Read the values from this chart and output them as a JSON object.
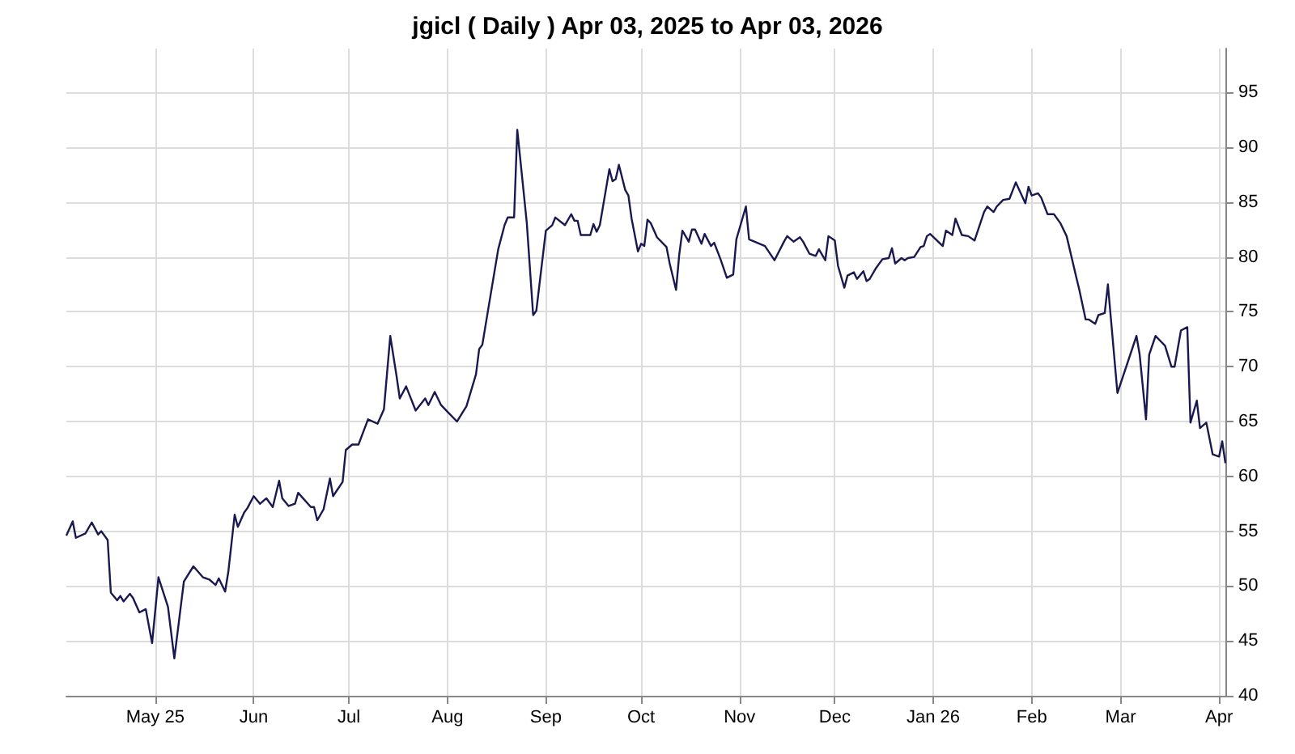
{
  "chart_data": {
    "type": "line",
    "title": "jgicl ( Daily ) Apr 03, 2025 to Apr 03, 2026",
    "xlim": [
      "2025-04-03",
      "2026-04-03"
    ],
    "xticks": [
      {
        "value": "2025-05-01",
        "label": "May 25"
      },
      {
        "value": "2025-06-01",
        "label": "Jun"
      },
      {
        "value": "2025-07-01",
        "label": "Jul"
      },
      {
        "value": "2025-08-01",
        "label": "Aug"
      },
      {
        "value": "2025-09-01",
        "label": "Sep"
      },
      {
        "value": "2025-10-01",
        "label": "Oct"
      },
      {
        "value": "2025-11-01",
        "label": "Nov"
      },
      {
        "value": "2025-12-01",
        "label": "Dec"
      },
      {
        "value": "2026-01-01",
        "label": "Jan 26"
      },
      {
        "value": "2026-02-01",
        "label": "Feb"
      },
      {
        "value": "2026-03-01",
        "label": "Mar"
      },
      {
        "value": "2026-04-01",
        "label": "Apr"
      }
    ],
    "ylim": [
      40,
      99
    ],
    "yticks": [
      40,
      45,
      50,
      55,
      60,
      65,
      70,
      75,
      80,
      85,
      90,
      95
    ],
    "grid": true,
    "marker": "none",
    "line_style": "solid",
    "x": [
      "2025-04-03",
      "2025-04-05",
      "2025-04-06",
      "2025-04-09",
      "2025-04-11",
      "2025-04-13",
      "2025-04-14",
      "2025-04-16",
      "2025-04-17",
      "2025-04-19",
      "2025-04-20",
      "2025-04-21",
      "2025-04-23",
      "2025-04-24",
      "2025-04-26",
      "2025-04-28",
      "2025-04-30",
      "2025-05-02",
      "2025-05-05",
      "2025-05-07",
      "2025-05-10",
      "2025-05-13",
      "2025-05-16",
      "2025-05-18",
      "2025-05-20",
      "2025-05-21",
      "2025-05-23",
      "2025-05-24",
      "2025-05-26",
      "2025-05-27",
      "2025-05-29",
      "2025-05-30",
      "2025-06-01",
      "2025-06-03",
      "2025-06-05",
      "2025-06-07",
      "2025-06-09",
      "2025-06-10",
      "2025-06-12",
      "2025-06-14",
      "2025-06-15",
      "2025-06-19",
      "2025-06-20",
      "2025-06-21",
      "2025-06-23",
      "2025-06-25",
      "2025-06-26",
      "2025-06-29",
      "2025-06-30",
      "2025-07-02",
      "2025-07-04",
      "2025-07-07",
      "2025-07-10",
      "2025-07-12",
      "2025-07-14",
      "2025-07-16",
      "2025-07-17",
      "2025-07-19",
      "2025-07-22",
      "2025-07-25",
      "2025-07-26",
      "2025-07-28",
      "2025-07-30",
      "2025-08-01",
      "2025-08-04",
      "2025-08-07",
      "2025-08-10",
      "2025-08-11",
      "2025-08-12",
      "2025-08-14",
      "2025-08-17",
      "2025-08-19",
      "2025-08-20",
      "2025-08-22",
      "2025-08-23",
      "2025-08-26",
      "2025-08-28",
      "2025-08-29",
      "2025-09-01",
      "2025-09-03",
      "2025-09-04",
      "2025-09-07",
      "2025-09-09",
      "2025-09-10",
      "2025-09-11",
      "2025-09-12",
      "2025-09-15",
      "2025-09-16",
      "2025-09-17",
      "2025-09-18",
      "2025-09-21",
      "2025-09-22",
      "2025-09-23",
      "2025-09-24",
      "2025-09-26",
      "2025-09-27",
      "2025-09-28",
      "2025-09-30",
      "2025-10-01",
      "2025-10-02",
      "2025-10-03",
      "2025-10-04",
      "2025-10-06",
      "2025-10-09",
      "2025-10-10",
      "2025-10-12",
      "2025-10-13",
      "2025-10-14",
      "2025-10-16",
      "2025-10-17",
      "2025-10-18",
      "2025-10-20",
      "2025-10-21",
      "2025-10-23",
      "2025-10-24",
      "2025-10-26",
      "2025-10-28",
      "2025-10-30",
      "2025-10-31",
      "2025-11-03",
      "2025-11-04",
      "2025-11-09",
      "2025-11-12",
      "2025-11-15",
      "2025-11-16",
      "2025-11-18",
      "2025-11-20",
      "2025-11-21",
      "2025-11-23",
      "2025-11-25",
      "2025-11-26",
      "2025-11-28",
      "2025-11-29",
      "2025-12-01",
      "2025-12-02",
      "2025-12-04",
      "2025-12-05",
      "2025-12-07",
      "2025-12-08",
      "2025-12-10",
      "2025-12-11",
      "2025-12-12",
      "2025-12-14",
      "2025-12-16",
      "2025-12-18",
      "2025-12-19",
      "2025-12-20",
      "2025-12-22",
      "2025-12-23",
      "2025-12-24",
      "2025-12-26",
      "2025-12-28",
      "2025-12-29",
      "2025-12-30",
      "2025-12-31",
      "2026-01-04",
      "2026-01-05",
      "2026-01-07",
      "2026-01-08",
      "2026-01-10",
      "2026-01-12",
      "2026-01-14",
      "2026-01-17",
      "2026-01-18",
      "2026-01-20",
      "2026-01-21",
      "2026-01-23",
      "2026-01-25",
      "2026-01-27",
      "2026-01-30",
      "2026-01-31",
      "2026-02-01",
      "2026-02-03",
      "2026-02-04",
      "2026-02-06",
      "2026-02-08",
      "2026-02-10",
      "2026-02-12",
      "2026-02-15",
      "2026-02-16",
      "2026-02-18",
      "2026-02-19",
      "2026-02-21",
      "2026-02-22",
      "2026-02-24",
      "2026-02-25",
      "2026-02-28",
      "2026-03-06",
      "2026-03-07",
      "2026-03-09",
      "2026-03-10",
      "2026-03-12",
      "2026-03-15",
      "2026-03-17",
      "2026-03-18",
      "2026-03-20",
      "2026-03-22",
      "2026-03-23",
      "2026-03-25",
      "2026-03-26",
      "2026-03-28",
      "2026-03-30",
      "2026-04-01",
      "2026-04-02",
      "2026-04-03"
    ],
    "series": [
      {
        "color": "#191950",
        "values": [
          54.6,
          55.9,
          54.4,
          54.8,
          55.8,
          54.7,
          55.0,
          54.2,
          49.4,
          48.7,
          49.1,
          48.6,
          49.3,
          48.9,
          47.6,
          47.9,
          44.8,
          50.8,
          48.1,
          43.4,
          50.4,
          51.8,
          50.8,
          50.6,
          50.1,
          50.7,
          49.5,
          51.3,
          56.5,
          55.4,
          56.7,
          57.1,
          58.2,
          57.5,
          58.0,
          57.2,
          59.6,
          58.0,
          57.3,
          57.5,
          58.5,
          57.2,
          57.2,
          56.0,
          57.0,
          59.8,
          58.2,
          59.5,
          62.4,
          62.9,
          62.9,
          65.2,
          64.8,
          66.1,
          72.8,
          69.1,
          67.1,
          68.2,
          66.0,
          67.1,
          66.5,
          67.7,
          66.5,
          65.9,
          65.0,
          66.4,
          69.3,
          71.6,
          72.0,
          75.5,
          80.7,
          82.9,
          83.6,
          83.6,
          91.6,
          83.1,
          74.7,
          75.1,
          82.4,
          82.9,
          83.6,
          82.9,
          83.9,
          83.3,
          83.3,
          82.0,
          82.0,
          83.0,
          82.3,
          82.9,
          88.0,
          86.9,
          87.1,
          88.4,
          86.1,
          85.6,
          83.5,
          80.5,
          81.2,
          81.0,
          83.4,
          83.1,
          81.8,
          80.9,
          79.4,
          77.0,
          80.2,
          82.4,
          81.4,
          82.5,
          82.5,
          81.2,
          82.1,
          81.0,
          81.3,
          79.8,
          78.1,
          78.4,
          81.6,
          84.6,
          81.6,
          81.0,
          79.7,
          81.4,
          81.9,
          81.4,
          81.8,
          81.4,
          80.3,
          80.1,
          80.7,
          79.7,
          81.9,
          81.5,
          79.2,
          77.2,
          78.3,
          78.6,
          78.0,
          78.7,
          77.8,
          78.0,
          79.0,
          79.8,
          79.9,
          80.8,
          79.4,
          79.9,
          79.7,
          79.9,
          80.0,
          80.9,
          81.0,
          81.9,
          82.1,
          81.0,
          82.4,
          82.0,
          83.5,
          82.0,
          81.9,
          81.5,
          84.1,
          84.6,
          84.1,
          84.6,
          85.2,
          85.3,
          86.8,
          84.9,
          86.4,
          85.6,
          85.8,
          85.4,
          83.9,
          83.9,
          83.1,
          81.9,
          78.2,
          77.0,
          74.3,
          74.3,
          73.9,
          74.7,
          74.9,
          77.5,
          67.6,
          72.8,
          71.1,
          65.2,
          71.1,
          72.8,
          71.9,
          70.0,
          70.0,
          73.3,
          73.6,
          64.9,
          66.9,
          64.4,
          64.9,
          62.0,
          61.8,
          63.2,
          61.2
        ]
      }
    ]
  }
}
